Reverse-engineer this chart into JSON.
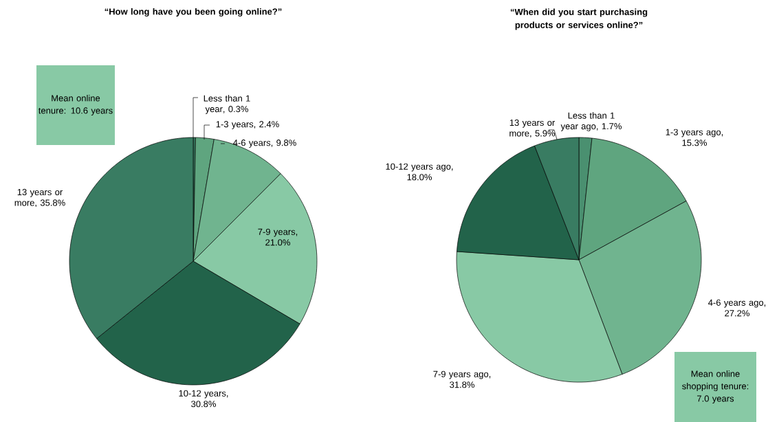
{
  "chart_data": [
    {
      "type": "pie",
      "title": "“How long have you been going online?”",
      "categories": [
        "Less than 1 year",
        "1-3 years",
        "4-6 years",
        "7-9 years",
        "10-12 years",
        "13 years or more"
      ],
      "values": [
        0.3,
        2.4,
        9.8,
        21.0,
        30.8,
        35.8
      ],
      "value_labels": [
        ", 0.3%",
        ", 2.4%",
        ", 9.8%",
        ", 21.0%",
        ", 30.8%",
        ", 35.8%"
      ],
      "colors": [
        "#397c62",
        "#5fa57f",
        "#70b48f",
        "#88c9a5",
        "#22634a",
        "#397c62"
      ],
      "annotations": [
        "Mean online tenure: 10.6 years"
      ]
    },
    {
      "type": "pie",
      "title": "“When did you start purchasing products or services online?”",
      "categories": [
        "Less than 1 year ago",
        "1-3 years ago",
        "4-6 years ago",
        "7-9 years ago",
        "10-12 years ago",
        "13 years or more"
      ],
      "values": [
        1.7,
        15.3,
        27.2,
        31.8,
        18.0,
        5.9
      ],
      "value_labels": [
        ", 1.7%",
        ", 15.3%",
        ", 27.2%",
        ", 31.8%",
        ", 18.0%",
        ", 5.9%"
      ],
      "colors": [
        "#4a9070",
        "#5fa57f",
        "#70b48f",
        "#88c9a5",
        "#22634a",
        "#397c62"
      ],
      "annotations": [
        "Mean online shopping tenure: 7.0 years"
      ]
    }
  ]
}
